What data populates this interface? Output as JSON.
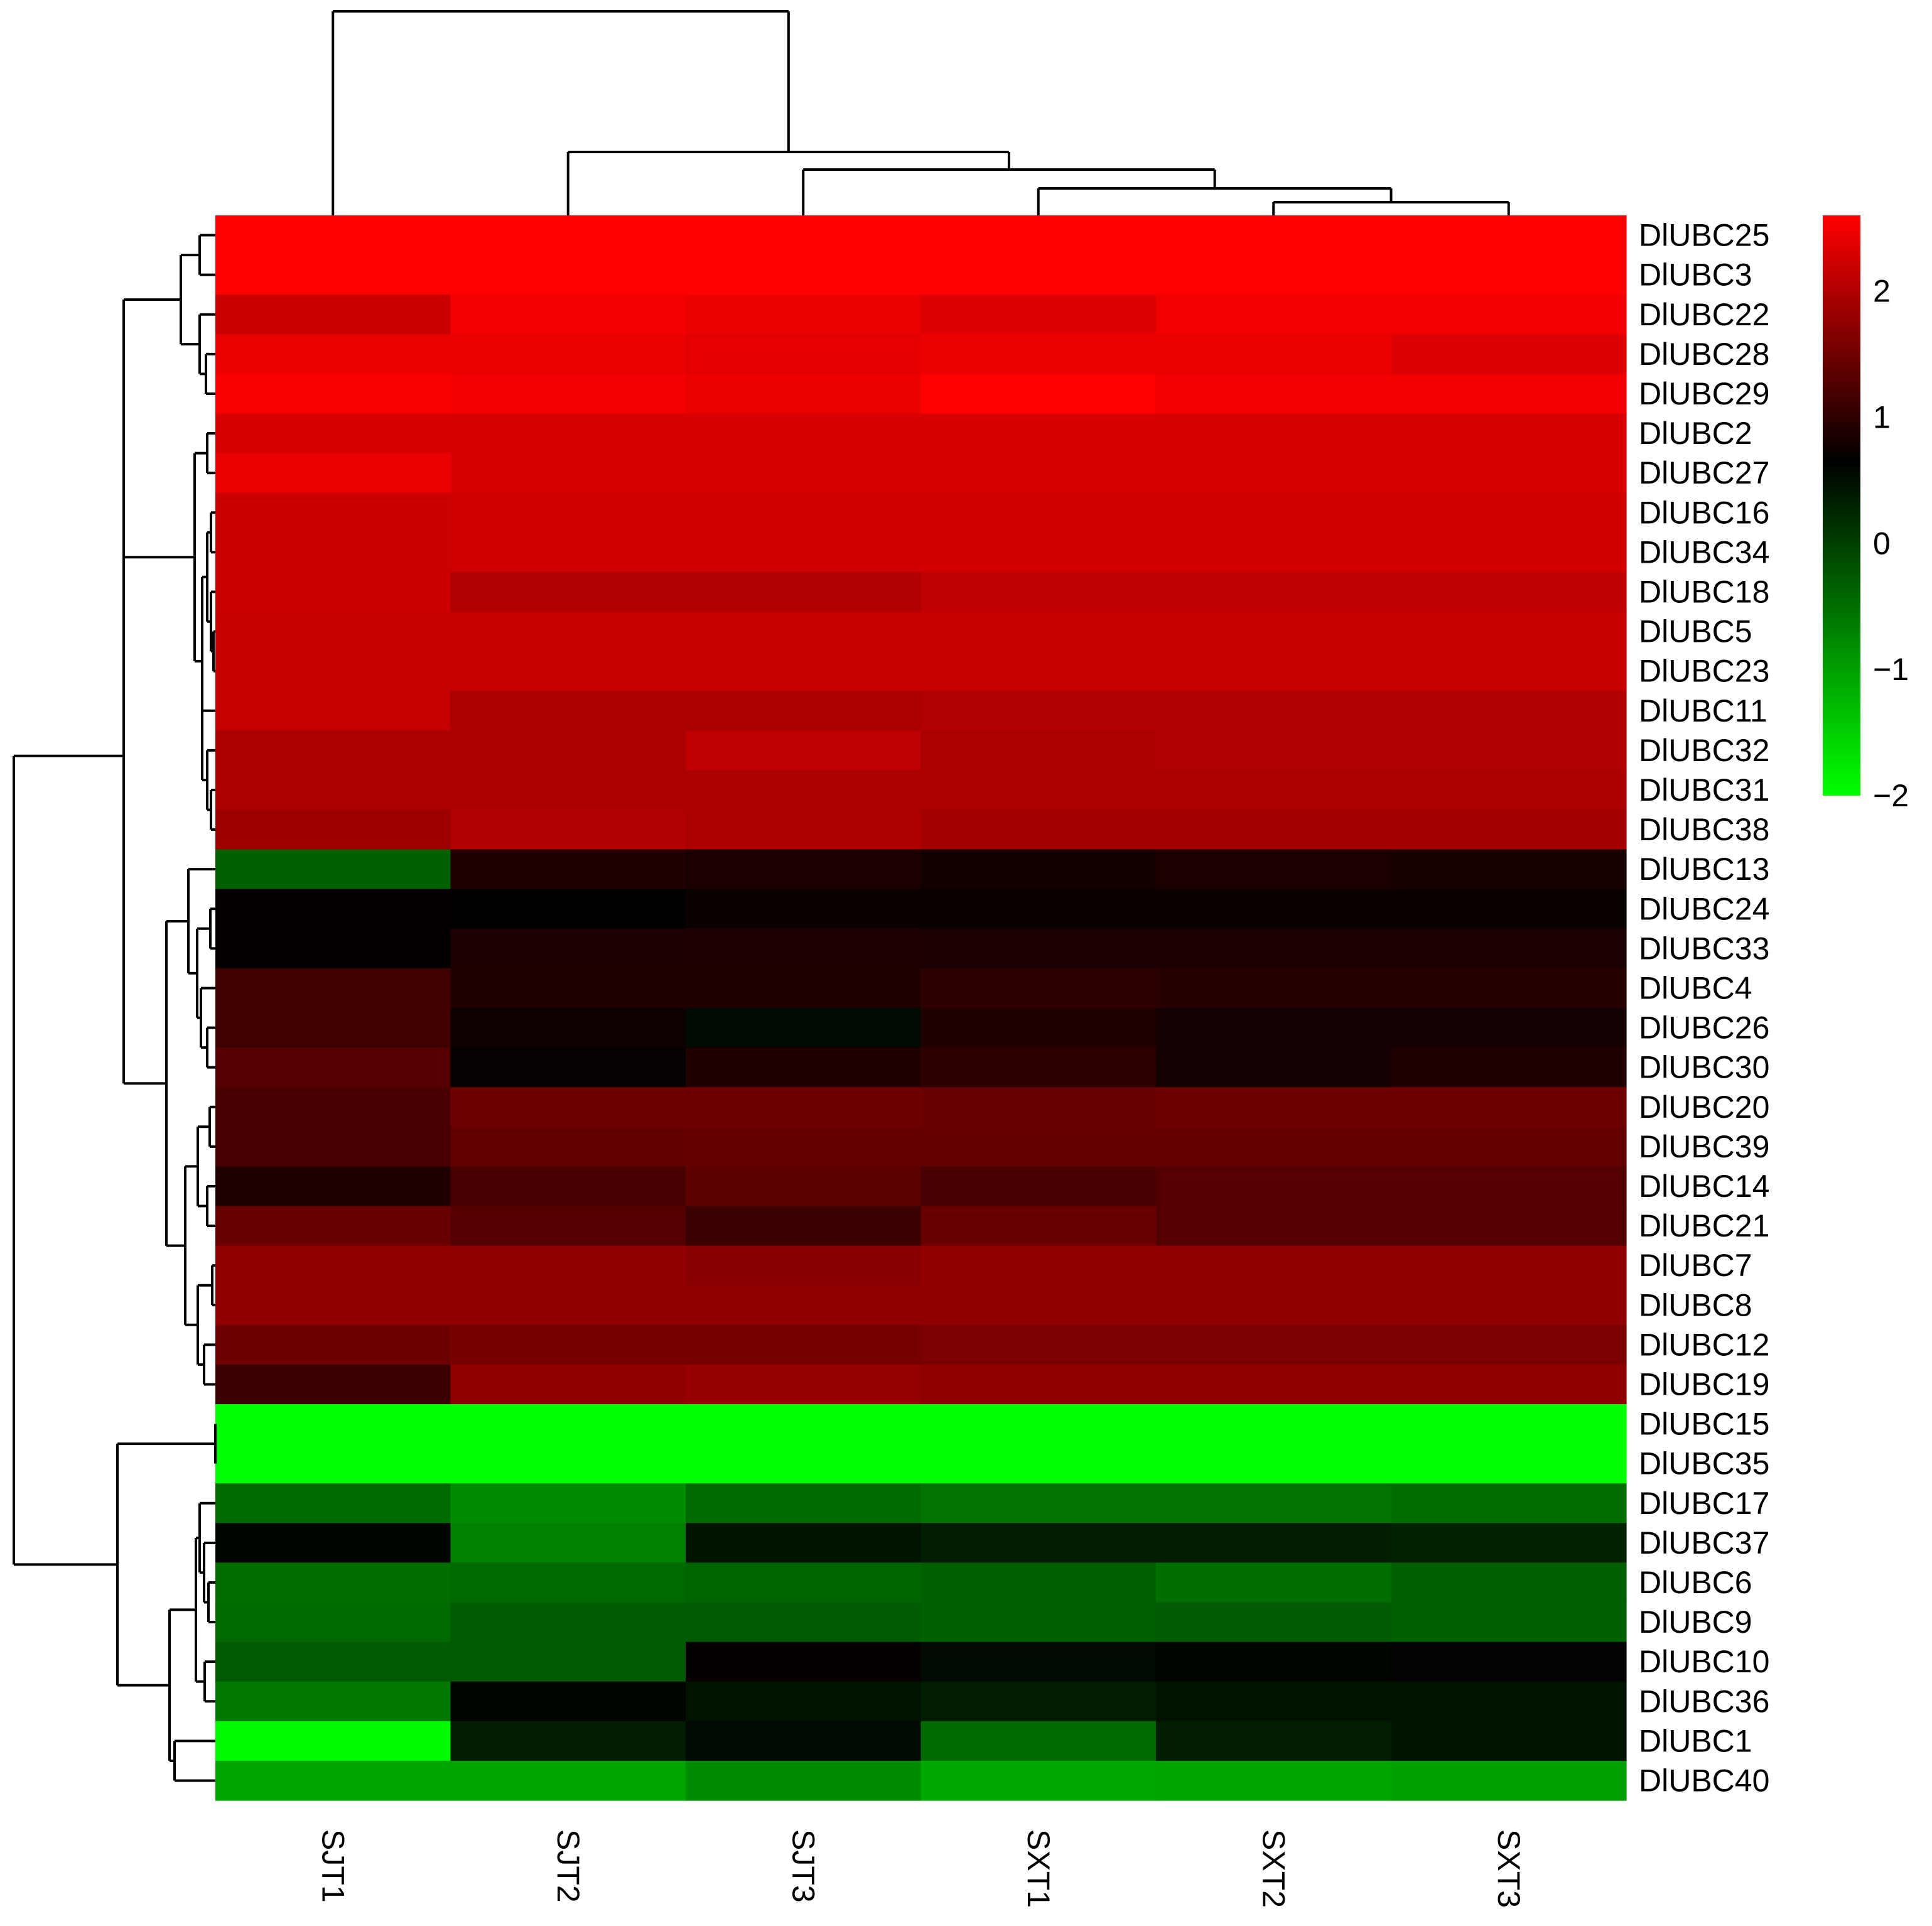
{
  "chart_data": {
    "type": "heatmap",
    "title": "",
    "xlabel": "",
    "ylabel": "",
    "columns": [
      "SJT1",
      "SJT2",
      "SJT3",
      "SXT1",
      "SXT2",
      "SXT3"
    ],
    "rows": [
      "DlUBC25",
      "DlUBC3",
      "DlUBC22",
      "DlUBC28",
      "DlUBC29",
      "DlUBC2",
      "DlUBC27",
      "DlUBC16",
      "DlUBC34",
      "DlUBC18",
      "DlUBC5",
      "DlUBC23",
      "DlUBC11",
      "DlUBC32",
      "DlUBC31",
      "DlUBC38",
      "DlUBC13",
      "DlUBC24",
      "DlUBC33",
      "DlUBC4",
      "DlUBC26",
      "DlUBC30",
      "DlUBC20",
      "DlUBC39",
      "DlUBC14",
      "DlUBC21",
      "DlUBC7",
      "DlUBC8",
      "DlUBC12",
      "DlUBC19",
      "DlUBC15",
      "DlUBC35",
      "DlUBC17",
      "DlUBC37",
      "DlUBC6",
      "DlUBC9",
      "DlUBC10",
      "DlUBC36",
      "DlUBC1",
      "DlUBC40"
    ],
    "values": [
      [
        2.6,
        2.6,
        2.6,
        2.6,
        2.6,
        2.6
      ],
      [
        2.6,
        2.6,
        2.6,
        2.6,
        2.6,
        2.6
      ],
      [
        2.2,
        2.5,
        2.45,
        2.35,
        2.5,
        2.5
      ],
      [
        2.45,
        2.45,
        2.4,
        2.45,
        2.45,
        2.35
      ],
      [
        2.55,
        2.5,
        2.45,
        2.6,
        2.5,
        2.5
      ],
      [
        2.3,
        2.3,
        2.3,
        2.3,
        2.3,
        2.3
      ],
      [
        2.45,
        2.3,
        2.3,
        2.3,
        2.3,
        2.3
      ],
      [
        2.2,
        2.25,
        2.25,
        2.25,
        2.25,
        2.25
      ],
      [
        2.2,
        2.25,
        2.25,
        2.25,
        2.25,
        2.25
      ],
      [
        2.2,
        2.0,
        2.0,
        2.1,
        2.1,
        2.1
      ],
      [
        2.15,
        2.15,
        2.15,
        2.15,
        2.15,
        2.15
      ],
      [
        2.15,
        2.15,
        2.15,
        2.15,
        2.15,
        2.15
      ],
      [
        2.15,
        1.95,
        1.95,
        2.0,
        2.0,
        2.0
      ],
      [
        1.95,
        1.95,
        2.1,
        1.95,
        2.0,
        2.0
      ],
      [
        1.95,
        1.95,
        1.95,
        1.95,
        1.95,
        1.95
      ],
      [
        1.85,
        2.0,
        1.95,
        1.9,
        1.9,
        1.9
      ],
      [
        -0.35,
        0.9,
        0.85,
        0.78,
        0.85,
        0.82
      ],
      [
        0.68,
        0.65,
        0.72,
        0.72,
        0.72,
        0.72
      ],
      [
        0.68,
        0.85,
        0.88,
        0.85,
        0.85,
        0.85
      ],
      [
        1.15,
        0.9,
        0.9,
        1.0,
        0.95,
        0.95
      ],
      [
        1.15,
        0.75,
        0.55,
        0.9,
        0.8,
        0.8
      ],
      [
        1.3,
        0.7,
        0.9,
        1.0,
        0.8,
        0.9
      ],
      [
        1.2,
        1.5,
        1.5,
        1.45,
        1.5,
        1.5
      ],
      [
        1.2,
        1.4,
        1.42,
        1.42,
        1.42,
        1.42
      ],
      [
        0.9,
        1.2,
        1.35,
        1.2,
        1.3,
        1.3
      ],
      [
        1.45,
        1.3,
        1.1,
        1.45,
        1.3,
        1.3
      ],
      [
        1.75,
        1.75,
        1.7,
        1.75,
        1.75,
        1.75
      ],
      [
        1.75,
        1.75,
        1.75,
        1.75,
        1.75,
        1.75
      ],
      [
        1.5,
        1.55,
        1.55,
        1.6,
        1.6,
        1.6
      ],
      [
        1.1,
        1.75,
        1.8,
        1.75,
        1.75,
        1.75
      ],
      [
        -2.0,
        -2.0,
        -2.0,
        -2.0,
        -2.0,
        -2.0
      ],
      [
        -2.0,
        -2.0,
        -2.0,
        -2.0,
        -2.0,
        -2.0
      ],
      [
        -0.45,
        -0.8,
        -0.45,
        -0.55,
        -0.55,
        -0.5
      ],
      [
        0.6,
        -0.7,
        0.45,
        0.35,
        0.35,
        0.3
      ],
      [
        -0.5,
        -0.45,
        -0.4,
        -0.35,
        -0.5,
        -0.35
      ],
      [
        -0.45,
        -0.3,
        -0.3,
        -0.35,
        -0.3,
        -0.35
      ],
      [
        -0.3,
        -0.3,
        0.68,
        0.55,
        0.6,
        0.62
      ],
      [
        -0.6,
        0.6,
        0.45,
        0.35,
        0.45,
        0.45
      ],
      [
        -1.95,
        0.35,
        0.55,
        -0.45,
        0.35,
        0.45
      ],
      [
        -1.05,
        -1.05,
        -0.8,
        -1.1,
        -1.05,
        -1.0
      ]
    ],
    "colorbar": {
      "min": -2.0,
      "max": 2.6,
      "ticks": [
        {
          "value": -2,
          "label": "−2"
        },
        {
          "value": -1,
          "label": "−1"
        },
        {
          "value": 0,
          "label": "0"
        },
        {
          "value": 1,
          "label": "1"
        },
        {
          "value": 2,
          "label": "2"
        }
      ],
      "colors": {
        "low": "#00ff00",
        "mid": "#000000",
        "high": "#ff0000"
      },
      "mid_value": 0.65
    },
    "col_order_dendrogram": "((SJT1),((SJT2),((SJT3),((SXT1),((SXT2),(SXT3))))))",
    "grid": false,
    "legend": "right"
  }
}
